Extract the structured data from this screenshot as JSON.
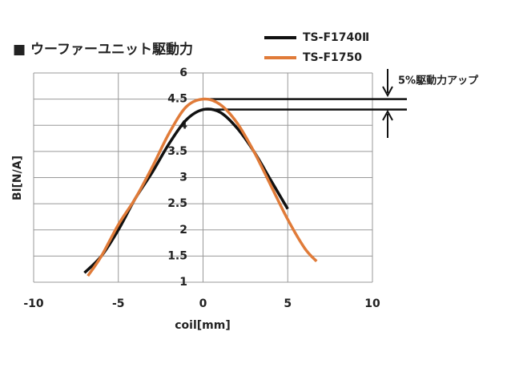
{
  "chart_data": {
    "type": "line",
    "title": "■ ウーファーユニット駆動力",
    "x_label": "coil[mm]",
    "y_label": "Bl[N/A]",
    "xlim": [
      -10,
      10
    ],
    "xticks": [
      -10,
      -5,
      0,
      5,
      10
    ],
    "ylim": [
      1,
      6
    ],
    "yticks": [
      1,
      1.5,
      2,
      2.5,
      3,
      3.5,
      4,
      4.5,
      6
    ],
    "grid": true,
    "series": [
      {
        "name": "TS-F1740Ⅱ",
        "color": "#111111",
        "x": [
          -7,
          -6,
          -5,
          -4,
          -3,
          -2,
          -1,
          0,
          1,
          2,
          3,
          4,
          5
        ],
        "values": [
          1.18,
          1.5,
          2.0,
          2.6,
          3.1,
          3.65,
          4.1,
          4.3,
          4.25,
          3.95,
          3.5,
          2.95,
          2.4
        ]
      },
      {
        "name": "TS-F1750",
        "color": "#e07b39",
        "x": [
          -6.8,
          -6,
          -5,
          -4,
          -3,
          -2,
          -1,
          0,
          1,
          2,
          3,
          4,
          5,
          6,
          6.7
        ],
        "values": [
          1.12,
          1.5,
          2.1,
          2.6,
          3.2,
          3.85,
          4.35,
          4.5,
          4.4,
          4.05,
          3.5,
          2.85,
          2.2,
          1.65,
          1.4
        ]
      }
    ],
    "annotation": {
      "text": "5%駆動力アップ",
      "levels": [
        4.5,
        4.3
      ]
    }
  }
}
